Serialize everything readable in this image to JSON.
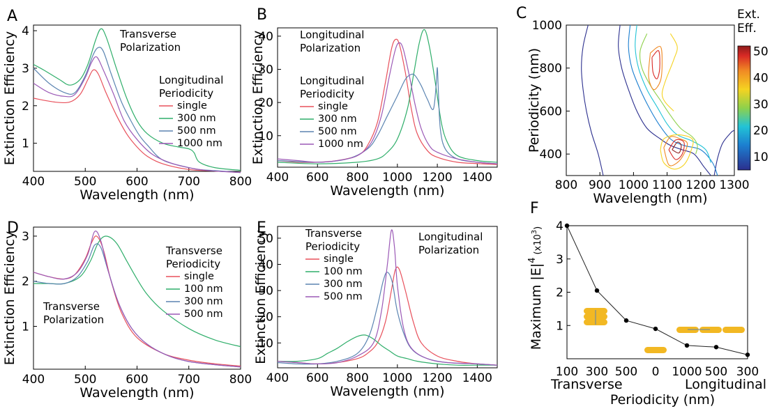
{
  "panels": {
    "a": "A",
    "b": "B",
    "c": "C",
    "d": "D",
    "e": "E",
    "f": "F"
  },
  "chart_data": [
    {
      "panel": "A",
      "type": "line",
      "xlabel": "Wavelength (nm)",
      "ylabel": "Extinction Efficiency",
      "xlim": [
        400,
        800
      ],
      "ylim": [
        0.25,
        4.15
      ],
      "xticks": [
        400,
        500,
        600,
        700,
        800
      ],
      "yticks": [
        1,
        2,
        3,
        4
      ],
      "annotation": [
        "Transverse",
        "Polarization"
      ],
      "legend_title": [
        "Longitudinal",
        "Periodicity"
      ],
      "series": [
        {
          "name": "single",
          "color": "#e8505b",
          "x": [
            400,
            440,
            470,
            490,
            505,
            515,
            525,
            540,
            560,
            580,
            600,
            620,
            650,
            700,
            750,
            800
          ],
          "y": [
            2.2,
            2.1,
            2.1,
            2.3,
            2.7,
            2.95,
            2.85,
            2.35,
            1.75,
            1.25,
            0.9,
            0.65,
            0.45,
            0.3,
            0.26,
            0.22
          ]
        },
        {
          "name": "300 nm",
          "color": "#2fae6a",
          "x": [
            400,
            420,
            450,
            470,
            490,
            505,
            520,
            530,
            540,
            560,
            580,
            600,
            620,
            650,
            680,
            700,
            710,
            720,
            750,
            800
          ],
          "y": [
            3.1,
            2.95,
            2.7,
            2.55,
            2.7,
            3.1,
            3.75,
            4.05,
            3.85,
            3.0,
            2.2,
            1.6,
            1.25,
            1.0,
            0.9,
            0.85,
            0.75,
            0.5,
            0.35,
            0.28
          ]
        },
        {
          "name": "500 nm",
          "color": "#5b84b1",
          "x": [
            400,
            430,
            460,
            480,
            500,
            515,
            525,
            535,
            550,
            570,
            590,
            605,
            620,
            650,
            700,
            720,
            750,
            800
          ],
          "y": [
            3.0,
            2.6,
            2.35,
            2.35,
            2.8,
            3.35,
            3.55,
            3.45,
            2.85,
            2.1,
            1.55,
            1.2,
            0.95,
            0.55,
            0.35,
            0.3,
            0.27,
            0.22
          ]
        },
        {
          "name": "1000 nm",
          "color": "#9b59b6",
          "x": [
            400,
            430,
            460,
            480,
            500,
            512,
            522,
            535,
            555,
            575,
            600,
            630,
            670,
            720,
            760,
            800
          ],
          "y": [
            2.6,
            2.35,
            2.25,
            2.3,
            2.75,
            3.15,
            3.3,
            2.95,
            2.3,
            1.6,
            1.1,
            0.7,
            0.45,
            0.3,
            0.25,
            0.22
          ]
        }
      ]
    },
    {
      "panel": "B",
      "type": "line",
      "xlabel": "Wavelength (nm)",
      "ylabel": "Extinction Efficiency",
      "xlim": [
        400,
        1500
      ],
      "ylim": [
        0.5,
        42.5
      ],
      "xticks": [
        400,
        600,
        800,
        1000,
        1200,
        1400
      ],
      "yticks": [
        10,
        20,
        30,
        40
      ],
      "annotation": [
        "Longitudinal",
        "Polarization"
      ],
      "legend_title": [
        "Longitudinal",
        "Periodicity"
      ],
      "series": [
        {
          "name": "single",
          "color": "#e8505b",
          "x": [
            400,
            500,
            600,
            700,
            800,
            850,
            900,
            940,
            970,
            990,
            1010,
            1040,
            1070,
            1100,
            1150,
            1200,
            1300,
            1400,
            1500
          ],
          "y": [
            2.5,
            2,
            2,
            2.5,
            4,
            7,
            14,
            26,
            36,
            39,
            37.5,
            29,
            18,
            10.5,
            5.5,
            3.5,
            2,
            1.6,
            1.3
          ]
        },
        {
          "name": "300 nm",
          "color": "#2fae6a",
          "x": [
            400,
            600,
            800,
            900,
            950,
            1000,
            1050,
            1080,
            1110,
            1135,
            1160,
            1190,
            1220,
            1250,
            1300,
            1400,
            1500
          ],
          "y": [
            2,
            1.5,
            2,
            3,
            5,
            9,
            18,
            28,
            38,
            42,
            37,
            26,
            14,
            8,
            4,
            2.5,
            2
          ]
        },
        {
          "name": "500 nm",
          "color": "#5b84b1",
          "x": [
            400,
            600,
            750,
            850,
            900,
            950,
            1000,
            1040,
            1070,
            1090,
            1120,
            1150,
            1180,
            1195,
            1200,
            1205,
            1215,
            1240,
            1300,
            1400,
            1500
          ],
          "y": [
            2.5,
            2,
            3,
            6,
            10,
            16,
            22,
            27,
            28.5,
            28,
            25,
            21,
            18,
            26,
            30.5,
            24,
            12,
            6,
            3,
            2,
            1.5
          ]
        },
        {
          "name": "1000 nm",
          "color": "#9b59b6",
          "x": [
            400,
            500,
            600,
            700,
            800,
            870,
            920,
            960,
            990,
            1010,
            1030,
            1060,
            1090,
            1120,
            1160,
            1200,
            1300,
            1400,
            1500
          ],
          "y": [
            3,
            2.5,
            2,
            2.5,
            4,
            8,
            16,
            28,
            36,
            38,
            36,
            28,
            19,
            12,
            7,
            5,
            3,
            2,
            1.5
          ]
        }
      ]
    },
    {
      "panel": "C",
      "type": "heatmap",
      "xlabel": "Wavelength (nm)",
      "ylabel": "Periodicity (nm)",
      "xlim": [
        800,
        1300
      ],
      "ylim": [
        300,
        1000
      ],
      "xticks": [
        800,
        900,
        1000,
        1100,
        1200,
        1300
      ],
      "yticks": [
        400,
        600,
        800,
        1000
      ],
      "colorbar_title": [
        "Ext.",
        "Eff."
      ],
      "colorbar_range": [
        5,
        52
      ],
      "colorbar_ticks": [
        10,
        20,
        30,
        40,
        50
      ],
      "note": "contour plot of extinction efficiency vs wavelength and periodicity"
    },
    {
      "panel": "D",
      "type": "line",
      "xlabel": "Wavelength (nm)",
      "ylabel": "Extinction Efficiency",
      "xlim": [
        400,
        800
      ],
      "ylim": [
        0.05,
        3.2
      ],
      "xticks": [
        400,
        500,
        600,
        700,
        800
      ],
      "yticks": [
        1,
        2,
        3
      ],
      "annotation": [
        "Transverse",
        "Polarization"
      ],
      "legend_title": [
        "Transverse",
        "Periodicity"
      ],
      "series": [
        {
          "name": "single",
          "color": "#e8505b",
          "x": [
            400,
            430,
            460,
            480,
            500,
            512,
            522,
            535,
            550,
            570,
            600,
            650,
            700,
            750,
            800
          ],
          "y": [
            2.2,
            2.1,
            2.05,
            2.15,
            2.5,
            2.85,
            3.0,
            2.7,
            2.0,
            1.3,
            0.75,
            0.4,
            0.25,
            0.17,
            0.12
          ]
        },
        {
          "name": "100 nm",
          "color": "#2fae6a",
          "x": [
            400,
            430,
            460,
            490,
            510,
            525,
            540,
            560,
            580,
            600,
            620,
            650,
            700,
            750,
            800
          ],
          "y": [
            1.95,
            1.95,
            1.95,
            2.1,
            2.45,
            2.85,
            3.0,
            2.85,
            2.45,
            2.05,
            1.7,
            1.35,
            0.95,
            0.7,
            0.55
          ]
        },
        {
          "name": "300 nm",
          "color": "#5b84b1",
          "x": [
            400,
            430,
            460,
            485,
            505,
            518,
            530,
            545,
            565,
            590,
            620,
            660,
            700,
            750,
            800
          ],
          "y": [
            2.0,
            1.95,
            1.95,
            2.1,
            2.45,
            2.8,
            2.75,
            2.2,
            1.5,
            0.95,
            0.6,
            0.35,
            0.22,
            0.15,
            0.1
          ]
        },
        {
          "name": "500 nm",
          "color": "#9b59b6",
          "x": [
            400,
            430,
            460,
            485,
            505,
            518,
            530,
            545,
            565,
            590,
            620,
            660,
            700,
            750,
            800
          ],
          "y": [
            2.2,
            2.1,
            2.05,
            2.2,
            2.6,
            3.1,
            2.9,
            2.2,
            1.5,
            0.95,
            0.6,
            0.35,
            0.22,
            0.15,
            0.1
          ]
        }
      ]
    },
    {
      "panel": "E",
      "type": "line",
      "xlabel": "Wavelength (nm)",
      "ylabel": "Extinction Efficiency",
      "xlim": [
        400,
        1500
      ],
      "ylim": [
        0.5,
        54.5
      ],
      "xticks": [
        400,
        600,
        800,
        1000,
        1200,
        1400
      ],
      "yticks": [
        10,
        20,
        30,
        40,
        50
      ],
      "annotation": [
        "Longitudinal",
        "Polarization"
      ],
      "legend_title": [
        "Transverse",
        "Periodicity"
      ],
      "series": [
        {
          "name": "single",
          "color": "#e8505b",
          "x": [
            400,
            500,
            600,
            700,
            800,
            850,
            900,
            940,
            970,
            990,
            1010,
            1040,
            1080,
            1120,
            1200,
            1300,
            1400,
            1500
          ],
          "y": [
            3,
            2.5,
            2,
            2.5,
            4,
            6,
            10,
            18,
            30,
            38,
            38,
            30,
            18,
            10,
            5,
            3,
            2,
            1.5
          ]
        },
        {
          "name": "100 nm",
          "color": "#2fae6a",
          "x": [
            400,
            500,
            600,
            650,
            700,
            750,
            800,
            840,
            880,
            920,
            960,
            1000,
            1050,
            1100,
            1200,
            1300,
            1400,
            1500
          ],
          "y": [
            3,
            3,
            4,
            6,
            8,
            10.5,
            12.5,
            13,
            11.5,
            9,
            7,
            5,
            4,
            3,
            2,
            1.5,
            1.5,
            1.5
          ]
        },
        {
          "name": "300 nm",
          "color": "#5b84b1",
          "x": [
            400,
            500,
            600,
            700,
            800,
            860,
            900,
            930,
            950,
            975,
            1000,
            1040,
            1080,
            1150,
            1250,
            1400,
            1500
          ],
          "y": [
            2.5,
            2,
            2,
            3,
            6,
            13,
            24,
            34,
            37,
            33,
            22,
            12,
            7,
            4,
            2.5,
            2,
            1.5
          ]
        },
        {
          "name": "500 nm",
          "color": "#9b59b6",
          "x": [
            400,
            500,
            600,
            700,
            800,
            880,
            920,
            950,
            970,
            985,
            1000,
            1030,
            1070,
            1150,
            1250,
            1400,
            1500
          ],
          "y": [
            3,
            2.5,
            2,
            2.5,
            5,
            10,
            22,
            40,
            53,
            47,
            32,
            16,
            8,
            4,
            2.5,
            2,
            1.5
          ]
        }
      ]
    },
    {
      "panel": "F",
      "type": "line",
      "ylabel": "Maximum |E|^4 (x10^3)",
      "ylabel_main": "Maximum |E|",
      "ylabel_exp": "4",
      "ylabel_unit": "(x10",
      "ylabel_unit_exp": "3",
      "ylabel_close": ")",
      "xlabel": "Periodicity (nm)",
      "xgroup_left": "Transverse",
      "xgroup_right": "Longitudinal",
      "ylim": [
        0,
        4
      ],
      "yticks": [
        1,
        2,
        3,
        4
      ],
      "xtick_labels": [
        "100",
        "300",
        "500",
        "0",
        "1000",
        "500",
        "300"
      ],
      "points": [
        {
          "label": "100",
          "value": 4.0
        },
        {
          "label": "300",
          "value": 2.05
        },
        {
          "label": "500",
          "value": 1.15
        },
        {
          "label": "0",
          "value": 0.9
        },
        {
          "label": "1000",
          "value": 0.4
        },
        {
          "label": "500",
          "value": 0.35
        },
        {
          "label": "300",
          "value": 0.12
        }
      ]
    }
  ]
}
